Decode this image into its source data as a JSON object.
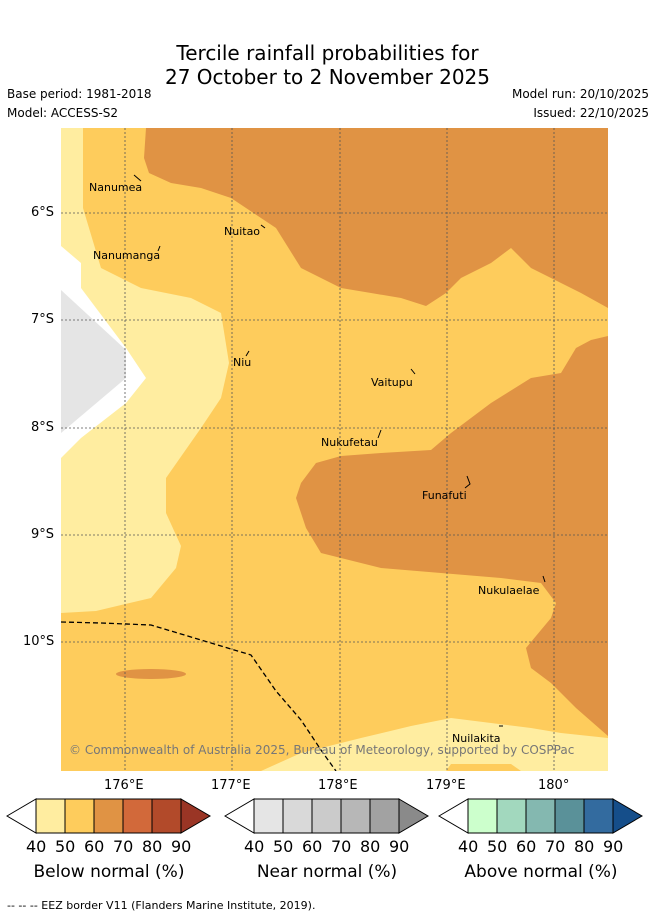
{
  "title_line1": "Tercile rainfall probabilities for",
  "title_line2": "27 October to 2 November 2025",
  "base_period": "Base period: 1981-2018",
  "model": "Model: ACCESS-S2",
  "model_run": "Model run: 20/10/2025",
  "issued": "Issued: 22/10/2025",
  "lat_ticks": [
    "6°S",
    "7°S",
    "8°S",
    "9°S",
    "10°S"
  ],
  "lon_ticks": [
    "176°E",
    "177°E",
    "178°E",
    "179°E",
    "180°"
  ],
  "places": [
    "Nanumea",
    "Nanumanga",
    "Nuitao",
    "Niu",
    "Vaitupu",
    "Nukufetau",
    "Funafuti",
    "Nukulaelae",
    "Nuilakita"
  ],
  "copyright": "© Commonwealth of Australia 2025, Bureau of Meteorology, supported by COSPPac",
  "colorbars": [
    {
      "title": "Below normal (%)",
      "labels": [
        "40",
        "50",
        "60",
        "70",
        "80",
        "90"
      ],
      "colors": [
        "#ffeda0",
        "#fecc5c",
        "#e09344",
        "#d2693a",
        "#b24a2a",
        "#9a3525"
      ]
    },
    {
      "title": "Near normal (%)",
      "labels": [
        "40",
        "50",
        "60",
        "70",
        "80",
        "90"
      ],
      "colors": [
        "#e5e5e5",
        "#d9d9d9",
        "#cbcbcb",
        "#b7b7b7",
        "#a2a2a2",
        "#8a8a8a"
      ]
    },
    {
      "title": "Above normal (%)",
      "labels": [
        "40",
        "50",
        "60",
        "70",
        "80",
        "90"
      ],
      "colors": [
        "#ccffcc",
        "#a2d8be",
        "#84b8b0",
        "#5a9199",
        "#336b9f",
        "#154e8a"
      ]
    }
  ],
  "footer": "--  --  -- EEZ border V11 (Flanders Marine Institute, 2019)."
}
